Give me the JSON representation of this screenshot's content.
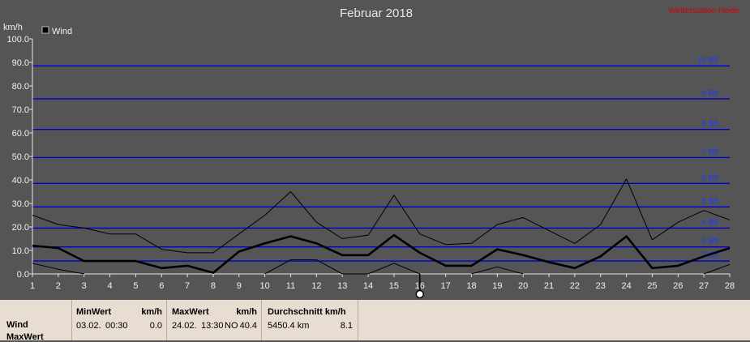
{
  "chart_data": {
    "type": "line",
    "title": "Februar 2018",
    "watermark": "Wetterstation Heide",
    "ylabel": "km/h",
    "ylim": [
      0,
      100
    ],
    "yticks": [
      "0.0",
      "10.0",
      "20.0",
      "30.0",
      "40.0",
      "50.0",
      "60.0",
      "70.0",
      "80.0",
      "90.0",
      "100.0"
    ],
    "x": [
      1,
      2,
      3,
      4,
      5,
      6,
      7,
      8,
      9,
      10,
      11,
      12,
      13,
      14,
      15,
      16,
      17,
      18,
      19,
      20,
      21,
      22,
      23,
      24,
      25,
      26,
      27,
      28
    ],
    "legend": "Wind",
    "cursor_day": 16,
    "beaufort": [
      {
        "label": "2 Bft",
        "value": 5.5
      },
      {
        "label": "3 Bft",
        "value": 11.5
      },
      {
        "label": "4 Bft",
        "value": 19.5
      },
      {
        "label": "5 Bft",
        "value": 28.5
      },
      {
        "label": "6 Bft",
        "value": 38.5
      },
      {
        "label": "7 Bft",
        "value": 49.5
      },
      {
        "label": "8 Bft",
        "value": 61.5
      },
      {
        "label": "9 Bft",
        "value": 74.5
      },
      {
        "label": "10 Bft",
        "value": 88.5
      }
    ],
    "series": [
      {
        "name": "Wind",
        "role": "max",
        "values": [
          25,
          21,
          19.5,
          17,
          17,
          10.5,
          9,
          9,
          17,
          25,
          35,
          22,
          15,
          16.5,
          33.5,
          17,
          12.5,
          13,
          21,
          24,
          18.5,
          13,
          21,
          40.4,
          14.5,
          22,
          27,
          23
        ]
      },
      {
        "name": "Wind",
        "role": "mean",
        "values": [
          12,
          11,
          5.5,
          5.5,
          5.5,
          2.5,
          3.5,
          0.5,
          9.5,
          13,
          16,
          13,
          8,
          8,
          16.5,
          9,
          3.5,
          3.5,
          10.5,
          8,
          5,
          2.5,
          7.5,
          16,
          2.5,
          3.5,
          7.5,
          11
        ]
      },
      {
        "name": "Wind",
        "role": "min",
        "values": [
          4.5,
          2,
          0,
          null,
          null,
          null,
          null,
          null,
          null,
          0,
          6,
          6,
          0,
          0,
          4.5,
          0,
          null,
          0,
          3,
          0,
          null,
          null,
          null,
          null,
          null,
          null,
          0,
          4
        ]
      }
    ],
    "colors": {
      "background": "#555555",
      "beaufort_line": "#0000cc",
      "beaufort_label": "#1a3cff",
      "title": "#e6e6e6",
      "watermark": "#d40000",
      "axis_text": "#f0f0f0",
      "series": "#000000"
    }
  },
  "table": {
    "rows": [
      "Wind",
      "MaxWert"
    ],
    "minwert": {
      "header": "MinWert",
      "unit": "km/h",
      "date": "03.02.",
      "time": "00:30",
      "value": "0.0"
    },
    "maxwert": {
      "header": "MaxWert",
      "unit": "km/h",
      "date": "24.02.",
      "time": "13:30",
      "dir": "NO",
      "value": "40.4"
    },
    "durchschnitt": {
      "header": "Durchschnitt km/h",
      "distance": "5450.4 km",
      "value": "8.1"
    }
  }
}
